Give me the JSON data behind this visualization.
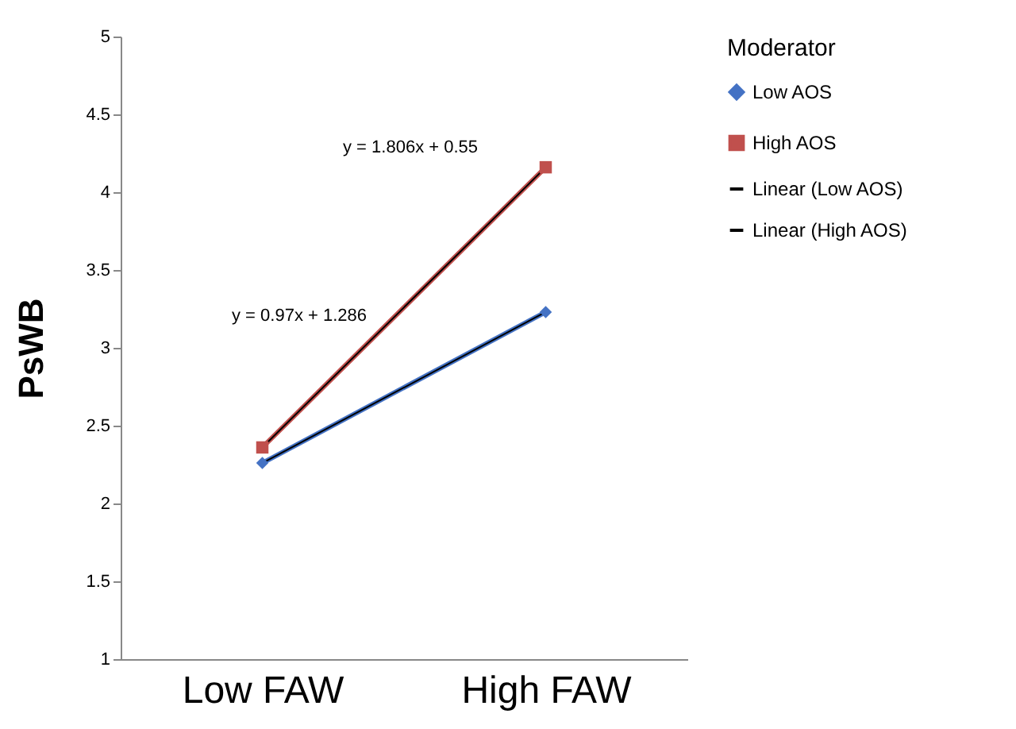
{
  "chart_data": {
    "type": "line",
    "ylabel": "PsWB",
    "categories": [
      "Low FAW",
      "High FAW"
    ],
    "series": [
      {
        "name": "Low AOS",
        "color": "#4472c4",
        "values": [
          2.26,
          3.23
        ],
        "marker": "diamond"
      },
      {
        "name": "High AOS",
        "color": "#c0504d",
        "values": [
          2.36,
          4.16
        ],
        "marker": "square"
      },
      {
        "name": "Linear (Low AOS)",
        "color": "#000000",
        "values": [
          2.26,
          3.23
        ],
        "marker": "none"
      },
      {
        "name": "Linear (High AOS)",
        "color": "#000000",
        "values": [
          2.36,
          4.16
        ],
        "marker": "none"
      }
    ],
    "ylim": [
      1,
      5
    ],
    "yticks": [
      1,
      1.5,
      2,
      2.5,
      3,
      3.5,
      4,
      4.5,
      5
    ],
    "legend": "right",
    "legend_title": "Moderator",
    "grid": false,
    "annotations": [
      "y = 1.806x + 0.55",
      "y = 0.97x + 1.286"
    ]
  }
}
